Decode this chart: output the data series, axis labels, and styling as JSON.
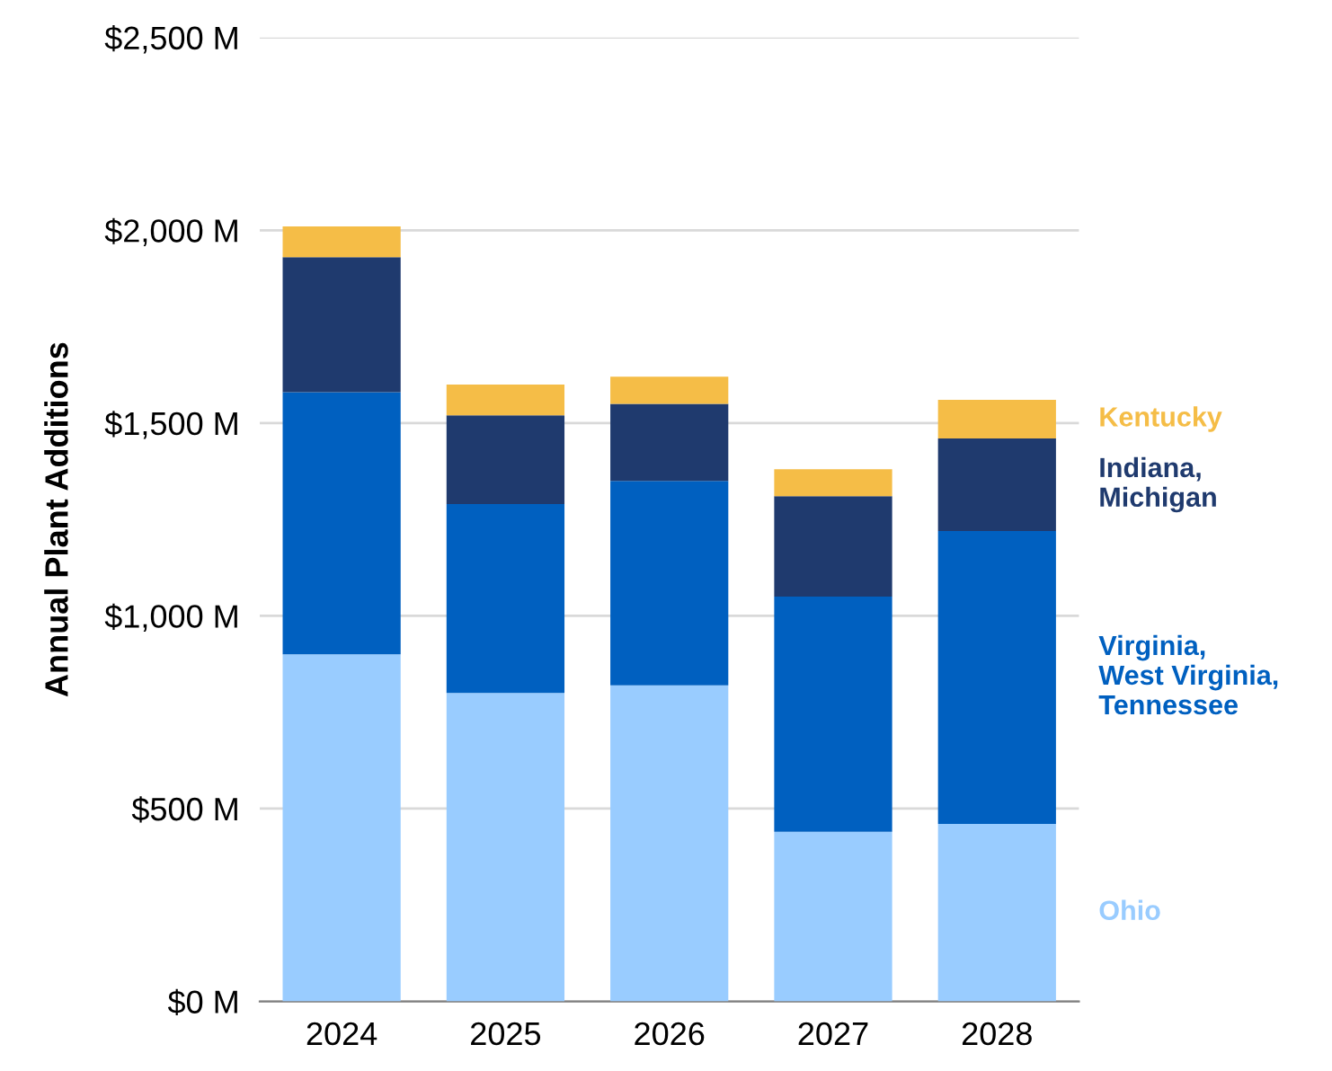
{
  "chart_data": {
    "type": "bar",
    "stacked": true,
    "ylabel": "Annual Plant Additions",
    "categories": [
      "2024",
      "2025",
      "2026",
      "2027",
      "2028"
    ],
    "series": [
      {
        "name": "Ohio",
        "color": "#99ccff",
        "values": [
          900,
          800,
          820,
          440,
          460
        ]
      },
      {
        "name": "Virginia,\nWest Virginia,\nTennessee",
        "color": "#0060c0",
        "values": [
          680,
          490,
          530,
          610,
          760
        ]
      },
      {
        "name": "Indiana,\nMichigan",
        "color": "#1f3a6e",
        "values": [
          350,
          230,
          200,
          260,
          240
        ]
      },
      {
        "name": "Kentucky",
        "color": "#f5bd47",
        "values": [
          80,
          80,
          70,
          70,
          100
        ]
      }
    ],
    "ylim": [
      0,
      2500
    ],
    "yticks": [
      {
        "value": 0,
        "label": "$0 M"
      },
      {
        "value": 500,
        "label": "$500 M"
      },
      {
        "value": 1000,
        "label": "$1,000 M"
      },
      {
        "value": 1500,
        "label": "$1,500 M"
      },
      {
        "value": 2000,
        "label": "$2,000 M"
      },
      {
        "value": 2500,
        "label": "$2,500 M"
      }
    ],
    "grid": "y",
    "legend": "right"
  }
}
